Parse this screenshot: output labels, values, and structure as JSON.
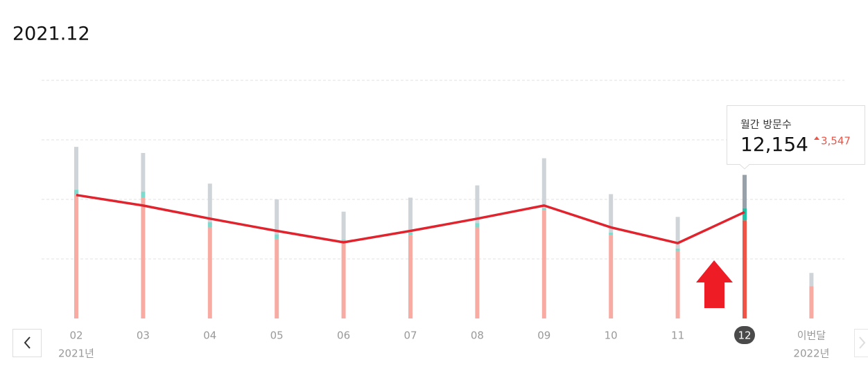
{
  "title": "2021.12",
  "chart_data": {
    "type": "bar-line",
    "categories": [
      "02",
      "03",
      "04",
      "05",
      "06",
      "07",
      "08",
      "09",
      "10",
      "11",
      "12",
      "이번달"
    ],
    "start_year": "2021년",
    "end_year": "2022년",
    "selected": 10,
    "series": [
      {
        "color": "#f8aba2",
        "selected_color": "#ef5446",
        "values": [
          14100,
          13800,
          10400,
          9100,
          8700,
          9500,
          10400,
          12400,
          9500,
          7700,
          11200,
          3700
        ]
      },
      {
        "color": "#7fdacd",
        "selected_color": "#1fc1a6",
        "values": [
          600,
          700,
          600,
          500,
          300,
          300,
          500,
          200,
          300,
          300,
          1400,
          0
        ]
      },
      {
        "color": "#cfd4d9",
        "selected_color": "#98a1a9",
        "values": [
          4900,
          4400,
          4400,
          4000,
          3200,
          4000,
          4300,
          5700,
          4400,
          3600,
          3800,
          1500
        ]
      }
    ],
    "line": {
      "color": "#e0232d",
      "values": [
        14100,
        12900,
        11400,
        10000,
        8700,
        10000,
        11400,
        12900,
        10400,
        8607,
        12154,
        null
      ]
    },
    "ylim": [
      0,
      27200
    ],
    "yticks": [
      6800,
      13600,
      20400,
      27200
    ],
    "grid": true
  },
  "tooltip": {
    "label": "월간 방문수",
    "value": "12,154",
    "change": "3,547"
  }
}
